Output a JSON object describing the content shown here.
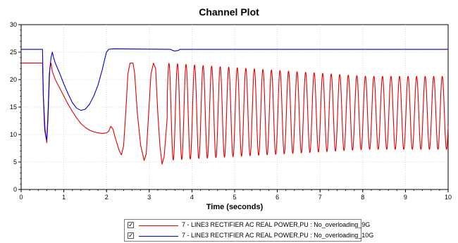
{
  "chart_data": {
    "type": "line",
    "title": "Channel Plot",
    "xlabel": "Time (seconds)",
    "ylabel": "",
    "xlim": [
      0,
      10
    ],
    "ylim": [
      0,
      30
    ],
    "xticks": [
      "0",
      "1",
      "2",
      "3",
      "4",
      "5",
      "6",
      "7",
      "8",
      "9",
      "10"
    ],
    "yticks": [
      "0",
      "5",
      "10",
      "15",
      "20",
      "25",
      "30"
    ],
    "grid": true,
    "legend_position": "bottom-center",
    "series": [
      {
        "name": "7 - LINE3 RECTIFIER AC REAL POWER,PU : No_overloading_9G",
        "color": "#e00000",
        "shape": {
          "pre_value": 23.0,
          "fault_start": 0.5,
          "pre_fault_drop": [
            [
              0.5,
              23.0
            ],
            [
              0.52,
              17
            ],
            [
              0.56,
              11
            ],
            [
              0.6,
              8.5
            ],
            [
              0.63,
              13
            ],
            [
              0.67,
              22
            ],
            [
              0.7,
              23.0
            ],
            [
              0.73,
              21.5
            ],
            [
              0.8,
              20
            ],
            [
              0.9,
              18.5
            ],
            [
              1.0,
              17
            ],
            [
              1.1,
              15.5
            ],
            [
              1.2,
              14.2
            ],
            [
              1.3,
              13.0
            ],
            [
              1.4,
              12.0
            ],
            [
              1.5,
              11.3
            ],
            [
              1.6,
              10.8
            ],
            [
              1.7,
              10.5
            ],
            [
              1.8,
              10.3
            ],
            [
              1.9,
              10.2
            ],
            [
              2.0,
              10.3
            ],
            [
              2.05,
              10.6
            ],
            [
              2.1,
              11.5
            ],
            [
              2.15,
              11.0
            ],
            [
              2.2,
              9.5
            ],
            [
              2.3,
              7.0
            ],
            [
              2.35,
              6.3
            ],
            [
              2.4,
              8
            ],
            [
              2.45,
              14
            ],
            [
              2.5,
              21
            ],
            [
              2.55,
              23.0
            ],
            [
              2.62,
              23.0
            ],
            [
              2.66,
              21
            ],
            [
              2.72,
              14
            ],
            [
              2.8,
              8
            ],
            [
              2.88,
              5.3
            ],
            [
              2.93,
              6.5
            ],
            [
              2.98,
              13
            ],
            [
              3.04,
              21
            ],
            [
              3.1,
              23.0
            ],
            [
              3.15,
              22
            ],
            [
              3.2,
              14
            ],
            [
              3.25,
              8
            ],
            [
              3.3,
              4.6
            ],
            [
              3.35,
              6
            ],
            [
              3.42,
              13
            ]
          ],
          "osc_start": 3.42,
          "osc_period": 0.2,
          "osc_max_start": 23.0,
          "osc_max_end": 20.6,
          "osc_min_start": 5.3,
          "osc_min_end": 7.3
        }
      },
      {
        "name": "7 - LINE3 RECTIFIER AC REAL POWER,PU : No_overloading_10G",
        "color": "#0000cc",
        "points": [
          [
            0,
            25.5
          ],
          [
            0.49,
            25.5
          ],
          [
            0.5,
            25.5
          ],
          [
            0.52,
            17
          ],
          [
            0.55,
            11
          ],
          [
            0.58,
            9.5
          ],
          [
            0.6,
            9.0
          ],
          [
            0.63,
            14
          ],
          [
            0.66,
            21
          ],
          [
            0.7,
            24.0
          ],
          [
            0.73,
            25.0
          ],
          [
            0.76,
            24.0
          ],
          [
            0.8,
            23.0
          ],
          [
            0.9,
            21.2
          ],
          [
            1.0,
            19.2
          ],
          [
            1.1,
            17.4
          ],
          [
            1.2,
            15.8
          ],
          [
            1.3,
            14.8
          ],
          [
            1.4,
            14.4
          ],
          [
            1.5,
            14.6
          ],
          [
            1.6,
            15.5
          ],
          [
            1.7,
            17.0
          ],
          [
            1.8,
            19.0
          ],
          [
            1.9,
            21.8
          ],
          [
            1.95,
            23.5
          ],
          [
            2.0,
            25.0
          ],
          [
            2.05,
            25.5
          ],
          [
            2.15,
            25.6
          ],
          [
            3.5,
            25.5
          ],
          [
            3.55,
            25.3
          ],
          [
            3.6,
            25.2
          ],
          [
            3.68,
            25.3
          ],
          [
            3.72,
            25.5
          ],
          [
            10,
            25.5
          ]
        ]
      }
    ]
  }
}
